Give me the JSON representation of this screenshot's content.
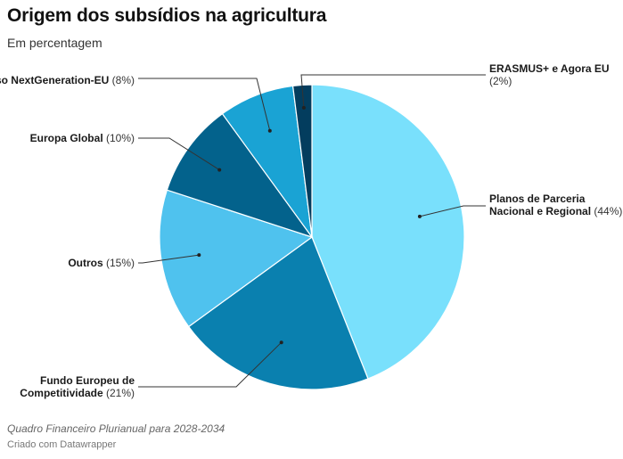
{
  "header": {
    "title": "Origem dos subsídios na agricultura",
    "subtitle": "Em percentagem"
  },
  "footer": {
    "note": "Quadro Financeiro Plurianual para 2028-2034",
    "credit": "Criado com Datawrapper"
  },
  "chart_data": {
    "type": "pie",
    "title": "Origem dos subsídios na agricultura",
    "subtitle": "Em percentagem",
    "slices": [
      {
        "label": "Planos de Parceria Nacional e Regional",
        "value": 44,
        "value_label": "(44%)",
        "color": "#79E0FC"
      },
      {
        "label": "Fundo Europeu de Competitividade",
        "value": 21,
        "value_label": "(21%)",
        "color": "#0A80AF"
      },
      {
        "label": "Outros",
        "value": 15,
        "value_label": "(15%)",
        "color": "#4FC2EE"
      },
      {
        "label": "Europa Global",
        "value": 10,
        "value_label": "(10%)",
        "color": "#03628C"
      },
      {
        "label": "Reebolso NextGeneration-EU",
        "value": 8,
        "value_label": "(8%)",
        "color": "#1AA3D4"
      },
      {
        "label": "ERASMUS+ e Agora EU",
        "value": 2,
        "value_label": "(2%)",
        "color": "#033D5E"
      }
    ]
  }
}
